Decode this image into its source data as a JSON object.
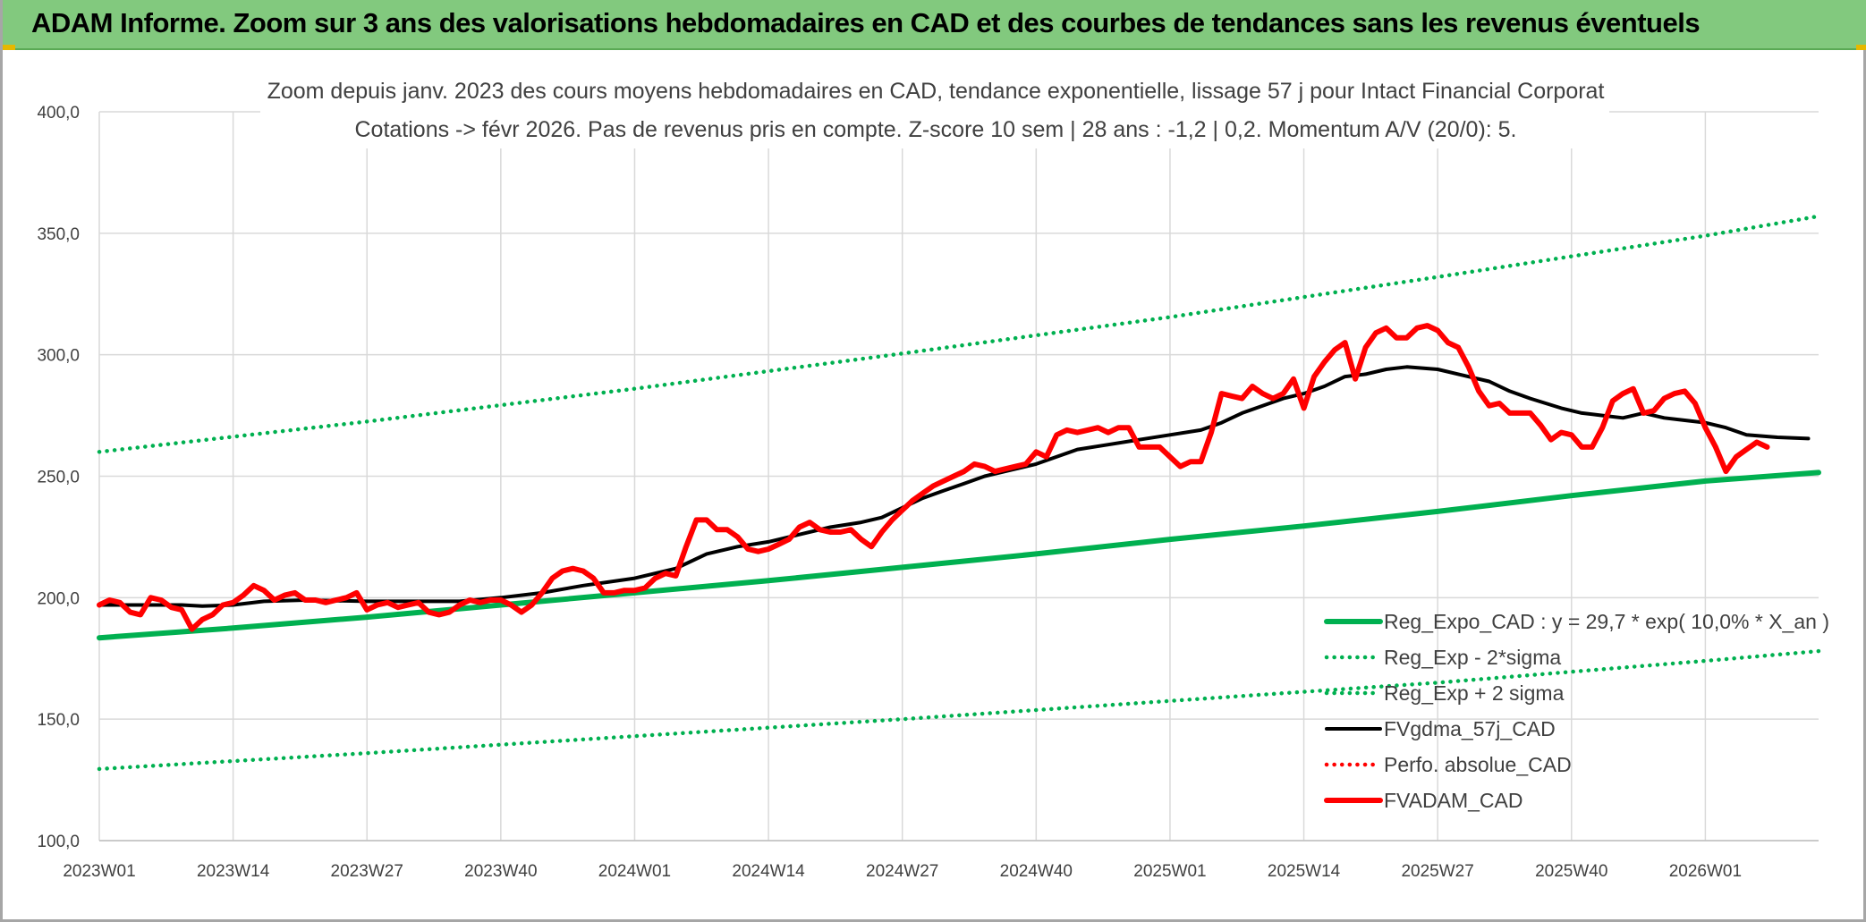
{
  "banner": {
    "title": "ADAM Informe. Zoom sur 3 ans des valorisations hebdomadaires en CAD et des courbes de tendances sans les revenus éventuels"
  },
  "colors": {
    "banner_bg": "#82c97e",
    "reg_expo": "#00b050",
    "fvgdma": "#000000",
    "fvadam": "#ff0000",
    "perfo": "#ff0000",
    "grid": "#d9d9d9"
  },
  "chart_data": {
    "type": "line",
    "title_line1": "Zoom depuis janv. 2023 des cours moyens hebdomadaires en CAD, tendance exponentielle, lissage 57 j pour Intact Financial Corporat",
    "title_line2": "Cotations -> févr 2026. Pas de revenus pris en compte. Z-score 10 sem | 28 ans : -1,2 | 0,2. Momentum A/V (20/0): 5.",
    "ylim": [
      100,
      400
    ],
    "y_ticks": [
      "100,0",
      "150,0",
      "200,0",
      "250,0",
      "300,0",
      "350,0",
      "400,0"
    ],
    "x_range_weeks": [
      0,
      167
    ],
    "x_ticks": [
      {
        "week": 0,
        "label": "2023W01"
      },
      {
        "week": 13,
        "label": "2023W14"
      },
      {
        "week": 26,
        "label": "2023W27"
      },
      {
        "week": 39,
        "label": "2023W40"
      },
      {
        "week": 52,
        "label": "2024W01"
      },
      {
        "week": 65,
        "label": "2024W14"
      },
      {
        "week": 78,
        "label": "2024W27"
      },
      {
        "week": 91,
        "label": "2024W40"
      },
      {
        "week": 104,
        "label": "2025W01"
      },
      {
        "week": 117,
        "label": "2025W14"
      },
      {
        "week": 130,
        "label": "2025W27"
      },
      {
        "week": 143,
        "label": "2025W40"
      },
      {
        "week": 156,
        "label": "2026W01"
      }
    ],
    "legend": [
      {
        "label": "Reg_Expo_CAD : y = 29,7 * exp( 10,0% *  X_an )",
        "style": "solid-thick",
        "color": "#00b050"
      },
      {
        "label": "Reg_Exp - 2*sigma",
        "style": "dotted",
        "color": "#00b050"
      },
      {
        "label": "Reg_Exp + 2 sigma",
        "style": "dotted",
        "color": "#00b050"
      },
      {
        "label": "FVgdma_57j_CAD",
        "style": "solid",
        "color": "#000000"
      },
      {
        "label": "Perfo. absolue_CAD",
        "style": "dotted",
        "color": "#ff0000"
      },
      {
        "label": "FVADAM_CAD",
        "style": "solid-thick",
        "color": "#ff0000"
      }
    ],
    "series": [
      {
        "name": "Reg_Expo_CAD",
        "style": "solid-thick",
        "color": "#00b050",
        "points": [
          [
            0,
            183.5
          ],
          [
            13,
            187.5
          ],
          [
            26,
            192
          ],
          [
            39,
            197
          ],
          [
            52,
            202
          ],
          [
            65,
            207
          ],
          [
            78,
            212.5
          ],
          [
            91,
            218
          ],
          [
            104,
            224
          ],
          [
            117,
            229.5
          ],
          [
            130,
            235.5
          ],
          [
            143,
            242
          ],
          [
            156,
            248
          ],
          [
            167,
            251.5
          ]
        ]
      },
      {
        "name": "Reg_Exp - 2*sigma",
        "style": "dotted",
        "color": "#00b050",
        "points": [
          [
            0,
            129.5
          ],
          [
            26,
            136
          ],
          [
            52,
            143
          ],
          [
            78,
            150
          ],
          [
            104,
            157.5
          ],
          [
            130,
            165
          ],
          [
            156,
            174
          ],
          [
            167,
            178
          ]
        ]
      },
      {
        "name": "Reg_Exp + 2 sigma",
        "style": "dotted",
        "color": "#00b050",
        "points": [
          [
            0,
            260
          ],
          [
            26,
            272.5
          ],
          [
            52,
            286
          ],
          [
            78,
            300.5
          ],
          [
            104,
            315.5
          ],
          [
            130,
            332
          ],
          [
            156,
            349
          ],
          [
            167,
            357
          ]
        ]
      },
      {
        "name": "FVgdma_57j_CAD",
        "style": "solid",
        "color": "#000000",
        "points": [
          [
            0,
            197
          ],
          [
            4,
            197
          ],
          [
            8,
            197
          ],
          [
            10,
            196.5
          ],
          [
            13,
            197
          ],
          [
            16,
            198.5
          ],
          [
            20,
            199
          ],
          [
            26,
            198.5
          ],
          [
            30,
            198.5
          ],
          [
            35,
            198.5
          ],
          [
            39,
            200
          ],
          [
            43,
            202
          ],
          [
            47,
            205
          ],
          [
            52,
            208
          ],
          [
            56,
            212
          ],
          [
            59,
            218
          ],
          [
            62,
            221
          ],
          [
            65,
            223
          ],
          [
            68,
            226
          ],
          [
            71,
            229
          ],
          [
            74,
            231
          ],
          [
            76,
            233
          ],
          [
            78,
            237
          ],
          [
            80,
            241
          ],
          [
            82,
            244
          ],
          [
            84,
            247
          ],
          [
            86,
            250
          ],
          [
            88,
            252
          ],
          [
            91,
            255
          ],
          [
            93,
            258
          ],
          [
            95,
            261
          ],
          [
            98,
            263
          ],
          [
            101,
            265
          ],
          [
            104,
            267
          ],
          [
            107,
            269
          ],
          [
            109,
            272
          ],
          [
            111,
            276
          ],
          [
            113,
            279
          ],
          [
            115,
            282
          ],
          [
            117,
            284
          ],
          [
            119,
            287
          ],
          [
            121,
            291
          ],
          [
            123,
            292
          ],
          [
            125,
            294
          ],
          [
            127,
            295
          ],
          [
            130,
            294
          ],
          [
            132,
            292
          ],
          [
            135,
            289
          ],
          [
            137,
            285
          ],
          [
            139,
            282
          ],
          [
            142,
            278
          ],
          [
            144,
            276
          ],
          [
            146,
            275
          ],
          [
            148,
            274
          ],
          [
            150,
            276
          ],
          [
            152,
            274
          ],
          [
            154,
            273
          ],
          [
            156,
            272
          ],
          [
            158,
            270
          ],
          [
            160,
            267
          ],
          [
            163,
            266
          ],
          [
            166,
            265.5
          ]
        ]
      },
      {
        "name": "FVADAM_CAD",
        "style": "solid-thick",
        "color": "#ff0000",
        "points": [
          [
            0,
            197
          ],
          [
            1,
            199
          ],
          [
            2,
            198
          ],
          [
            3,
            194
          ],
          [
            4,
            193
          ],
          [
            5,
            200
          ],
          [
            6,
            199
          ],
          [
            7,
            196
          ],
          [
            8,
            195
          ],
          [
            9,
            187
          ],
          [
            10,
            191
          ],
          [
            11,
            193
          ],
          [
            12,
            197
          ],
          [
            13,
            198
          ],
          [
            14,
            201
          ],
          [
            15,
            205
          ],
          [
            16,
            203
          ],
          [
            17,
            199
          ],
          [
            18,
            201
          ],
          [
            19,
            202
          ],
          [
            20,
            199
          ],
          [
            21,
            199
          ],
          [
            22,
            198
          ],
          [
            23,
            199
          ],
          [
            24,
            200
          ],
          [
            25,
            202
          ],
          [
            26,
            195
          ],
          [
            27,
            197
          ],
          [
            28,
            198
          ],
          [
            29,
            196
          ],
          [
            30,
            197
          ],
          [
            31,
            198
          ],
          [
            32,
            194
          ],
          [
            33,
            193
          ],
          [
            34,
            194
          ],
          [
            35,
            197
          ],
          [
            36,
            199
          ],
          [
            37,
            198
          ],
          [
            38,
            199
          ],
          [
            39,
            199
          ],
          [
            40,
            197
          ],
          [
            41,
            194
          ],
          [
            42,
            197
          ],
          [
            43,
            202
          ],
          [
            44,
            208
          ],
          [
            45,
            211
          ],
          [
            46,
            212
          ],
          [
            47,
            211
          ],
          [
            48,
            208
          ],
          [
            49,
            202
          ],
          [
            50,
            202
          ],
          [
            51,
            203
          ],
          [
            52,
            203
          ],
          [
            53,
            204
          ],
          [
            54,
            208
          ],
          [
            55,
            210
          ],
          [
            56,
            209
          ],
          [
            57,
            221
          ],
          [
            58,
            232
          ],
          [
            59,
            232
          ],
          [
            60,
            228
          ],
          [
            61,
            228
          ],
          [
            62,
            225
          ],
          [
            63,
            220
          ],
          [
            64,
            219
          ],
          [
            65,
            220
          ],
          [
            66,
            222
          ],
          [
            67,
            224
          ],
          [
            68,
            229
          ],
          [
            69,
            231
          ],
          [
            70,
            228
          ],
          [
            71,
            227
          ],
          [
            72,
            227
          ],
          [
            73,
            228
          ],
          [
            74,
            224
          ],
          [
            75,
            221
          ],
          [
            76,
            227
          ],
          [
            77,
            232
          ],
          [
            78,
            236
          ],
          [
            79,
            240
          ],
          [
            80,
            243
          ],
          [
            81,
            246
          ],
          [
            82,
            248
          ],
          [
            83,
            250
          ],
          [
            84,
            252
          ],
          [
            85,
            255
          ],
          [
            86,
            254
          ],
          [
            87,
            252
          ],
          [
            88,
            253
          ],
          [
            89,
            254
          ],
          [
            90,
            255
          ],
          [
            91,
            260
          ],
          [
            92,
            258
          ],
          [
            93,
            267
          ],
          [
            94,
            269
          ],
          [
            95,
            268
          ],
          [
            96,
            269
          ],
          [
            97,
            270
          ],
          [
            98,
            268
          ],
          [
            99,
            270
          ],
          [
            100,
            270
          ],
          [
            101,
            262
          ],
          [
            102,
            262
          ],
          [
            103,
            262
          ],
          [
            104,
            258
          ],
          [
            105,
            254
          ],
          [
            106,
            256
          ],
          [
            107,
            256
          ],
          [
            108,
            268
          ],
          [
            109,
            284
          ],
          [
            110,
            283
          ],
          [
            111,
            282
          ],
          [
            112,
            287
          ],
          [
            113,
            284
          ],
          [
            114,
            282
          ],
          [
            115,
            284
          ],
          [
            116,
            290
          ],
          [
            117,
            278
          ],
          [
            118,
            291
          ],
          [
            119,
            297
          ],
          [
            120,
            302
          ],
          [
            121,
            305
          ],
          [
            122,
            290
          ],
          [
            123,
            303
          ],
          [
            124,
            309
          ],
          [
            125,
            311
          ],
          [
            126,
            307
          ],
          [
            127,
            307
          ],
          [
            128,
            311
          ],
          [
            129,
            312
          ],
          [
            130,
            310
          ],
          [
            131,
            305
          ],
          [
            132,
            303
          ],
          [
            133,
            295
          ],
          [
            134,
            285
          ],
          [
            135,
            279
          ],
          [
            136,
            280
          ],
          [
            137,
            276
          ],
          [
            138,
            276
          ],
          [
            139,
            276
          ],
          [
            140,
            271
          ],
          [
            141,
            265
          ],
          [
            142,
            268
          ],
          [
            143,
            267
          ],
          [
            144,
            262
          ],
          [
            145,
            262
          ],
          [
            146,
            270
          ],
          [
            147,
            281
          ],
          [
            148,
            284
          ],
          [
            149,
            286
          ],
          [
            150,
            276
          ],
          [
            151,
            277
          ],
          [
            152,
            282
          ],
          [
            153,
            284
          ],
          [
            154,
            285
          ],
          [
            155,
            280
          ],
          [
            156,
            270
          ],
          [
            157,
            262
          ],
          [
            158,
            252
          ],
          [
            159,
            258
          ],
          [
            160,
            261
          ],
          [
            161,
            264
          ],
          [
            162,
            262
          ]
        ]
      }
    ]
  }
}
